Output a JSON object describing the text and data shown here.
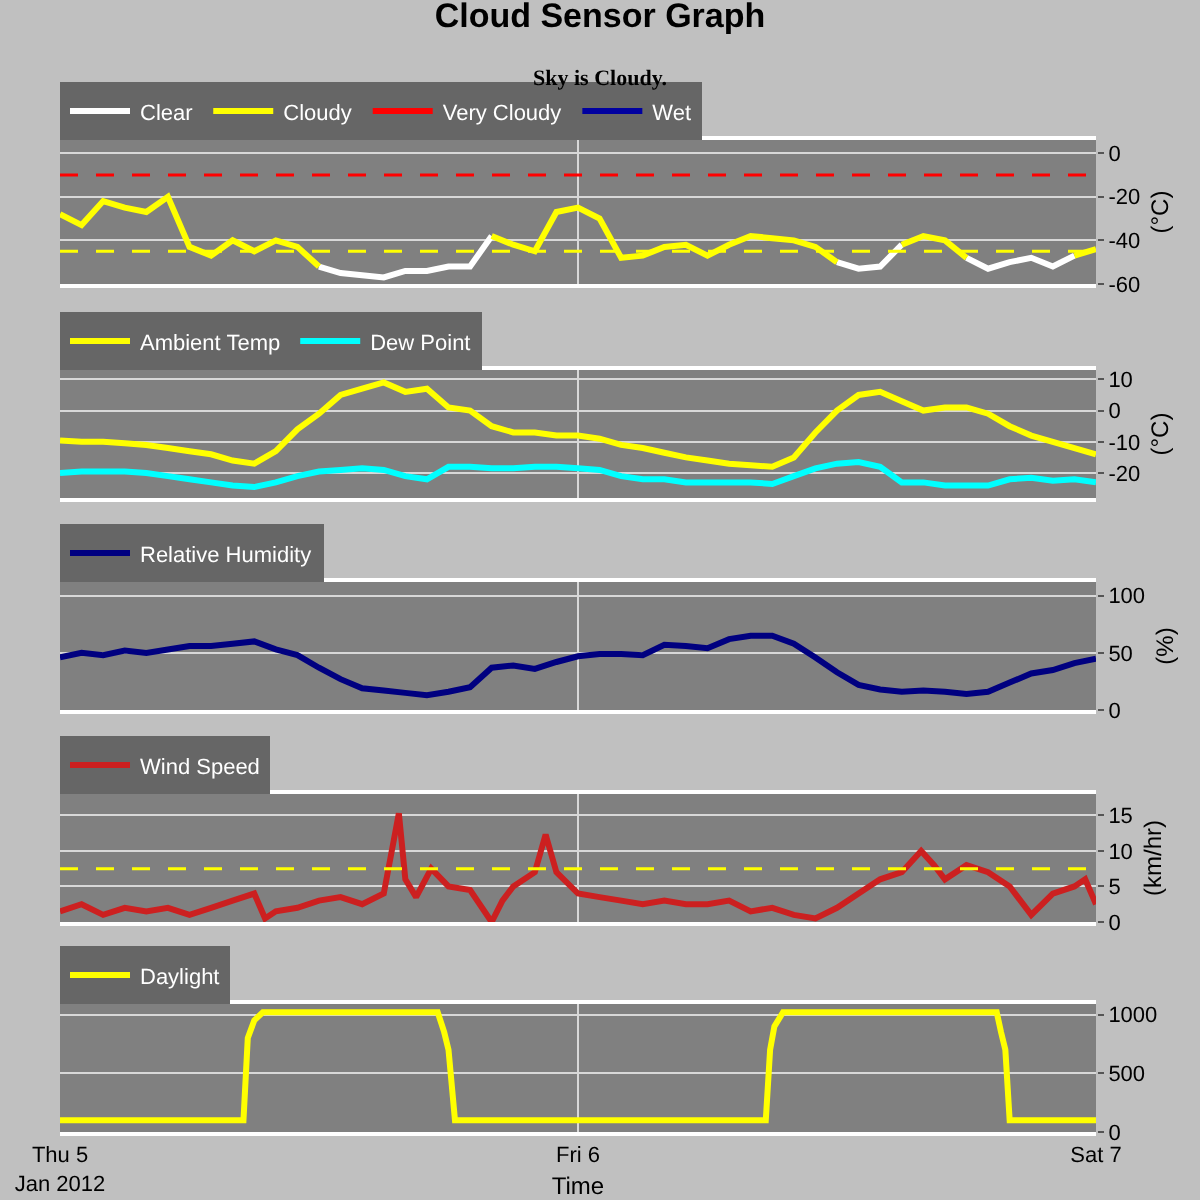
{
  "chart_data": [
    {
      "type": "line",
      "title": "Cloud Sensor Graph",
      "subtitle": "Sky is Cloudy.",
      "ylabel": "(°C)",
      "grid": true,
      "legend": "top left",
      "tick_labels": "y",
      "xlim": [
        "2012-01-05T00:00",
        "2012-01-07T00:00"
      ],
      "xticks": [
        {
          "value": "2012-01-05",
          "label": null
        },
        {
          "value": "2012-01-06",
          "label": null
        },
        {
          "value": "2012-01-07",
          "label": null
        }
      ],
      "ylim": [
        -60,
        6
      ],
      "yticks": [
        -60,
        -40,
        -20,
        0
      ],
      "x": [
        "2012-01-05T00:00",
        "2012-01-05T01:00",
        "2012-01-05T02:00",
        "2012-01-05T03:00",
        "2012-01-05T04:00",
        "2012-01-05T05:00",
        "2012-01-05T06:00",
        "2012-01-05T07:00",
        "2012-01-05T08:00",
        "2012-01-05T09:00",
        "2012-01-05T10:00",
        "2012-01-05T11:00",
        "2012-01-05T12:00",
        "2012-01-05T13:00",
        "2012-01-05T14:00",
        "2012-01-05T15:00",
        "2012-01-05T16:00",
        "2012-01-05T17:00",
        "2012-01-05T18:00",
        "2012-01-05T19:00",
        "2012-01-05T20:00",
        "2012-01-05T21:00",
        "2012-01-05T22:00",
        "2012-01-05T23:00",
        "2012-01-06T00:00",
        "2012-01-06T01:00",
        "2012-01-06T02:00",
        "2012-01-06T03:00",
        "2012-01-06T04:00",
        "2012-01-06T05:00",
        "2012-01-06T06:00",
        "2012-01-06T07:00",
        "2012-01-06T08:00",
        "2012-01-06T09:00",
        "2012-01-06T10:00",
        "2012-01-06T11:00",
        "2012-01-06T12:00",
        "2012-01-06T13:00",
        "2012-01-06T14:00",
        "2012-01-06T15:00",
        "2012-01-06T16:00",
        "2012-01-06T17:00",
        "2012-01-06T18:00",
        "2012-01-06T19:00",
        "2012-01-06T20:00",
        "2012-01-06T21:00",
        "2012-01-06T22:00",
        "2012-01-06T23:00",
        "2012-01-07T00:00"
      ],
      "series": [
        {
          "name": "Clear",
          "color": "#ffffff",
          "values": [
            null,
            null,
            null,
            null,
            null,
            null,
            null,
            null,
            null,
            null,
            null,
            null,
            -52,
            -55,
            -56,
            -57,
            -54,
            -54,
            -52,
            -52,
            -38,
            null,
            null,
            null,
            null,
            null,
            null,
            null,
            null,
            null,
            null,
            null,
            null,
            null,
            null,
            null,
            -50,
            -53,
            -52,
            -42,
            null,
            null,
            -48,
            -53,
            -50,
            -48,
            -52,
            -47,
            null
          ]
        },
        {
          "name": "Cloudy",
          "color": "#ffff00",
          "values": [
            -28,
            -33,
            -22,
            -25,
            -27,
            -20,
            -43,
            -47,
            -40,
            -45,
            -40,
            -43,
            -52,
            null,
            null,
            null,
            null,
            null,
            null,
            null,
            -38,
            -42,
            -45,
            -27,
            -25,
            -30,
            -48,
            -47,
            -43,
            -42,
            -47,
            -42,
            -38,
            -39,
            -40,
            -43,
            -50,
            null,
            null,
            -42,
            -38,
            -40,
            -48,
            null,
            null,
            null,
            null,
            -47,
            -44
          ]
        },
        {
          "name": "Very Cloudy",
          "color": "#ff0000",
          "values": [
            null,
            null,
            null,
            null,
            null,
            null,
            null,
            null,
            null,
            null,
            null,
            null,
            null,
            null,
            null,
            null,
            null,
            null,
            null,
            null,
            null,
            null,
            null,
            null,
            null,
            null,
            null,
            null,
            null,
            null,
            null,
            null,
            null,
            null,
            null,
            null,
            null,
            null,
            null,
            null,
            null,
            null,
            null,
            null,
            null,
            null,
            null,
            null,
            null
          ]
        },
        {
          "name": "Wet",
          "color": "#0000a0",
          "values": [
            null,
            null,
            null,
            null,
            null,
            null,
            null,
            null,
            null,
            null,
            null,
            null,
            null,
            null,
            null,
            null,
            null,
            null,
            null,
            null,
            null,
            null,
            null,
            null,
            null,
            null,
            null,
            null,
            null,
            null,
            null,
            null,
            null,
            null,
            null,
            null,
            null,
            null,
            null,
            null,
            null,
            null,
            null,
            null,
            null,
            null,
            null,
            null,
            null
          ]
        }
      ],
      "ref_lines": [
        {
          "axis": "y",
          "value": -10,
          "color": "#ff0000",
          "line_style": "dashed"
        },
        {
          "axis": "y",
          "value": -45,
          "color": "#ffff00",
          "line_style": "dashed"
        }
      ]
    },
    {
      "type": "line",
      "ylabel": "(°C)",
      "grid": true,
      "legend": "top left",
      "tick_labels": "y",
      "xlim": [
        "2012-01-05T00:00",
        "2012-01-07T00:00"
      ],
      "xticks": [
        {
          "value": "2012-01-05",
          "label": null
        },
        {
          "value": "2012-01-06",
          "label": null
        },
        {
          "value": "2012-01-07",
          "label": null
        }
      ],
      "ylim": [
        -28,
        13
      ],
      "yticks": [
        -20,
        -10,
        0,
        10
      ],
      "x": [
        "2012-01-05T00:00",
        "2012-01-05T01:00",
        "2012-01-05T02:00",
        "2012-01-05T03:00",
        "2012-01-05T04:00",
        "2012-01-05T05:00",
        "2012-01-05T06:00",
        "2012-01-05T07:00",
        "2012-01-05T08:00",
        "2012-01-05T09:00",
        "2012-01-05T10:00",
        "2012-01-05T11:00",
        "2012-01-05T12:00",
        "2012-01-05T13:00",
        "2012-01-05T14:00",
        "2012-01-05T15:00",
        "2012-01-05T16:00",
        "2012-01-05T17:00",
        "2012-01-05T18:00",
        "2012-01-05T19:00",
        "2012-01-05T20:00",
        "2012-01-05T21:00",
        "2012-01-05T22:00",
        "2012-01-05T23:00",
        "2012-01-06T00:00",
        "2012-01-06T01:00",
        "2012-01-06T02:00",
        "2012-01-06T03:00",
        "2012-01-06T04:00",
        "2012-01-06T05:00",
        "2012-01-06T06:00",
        "2012-01-06T07:00",
        "2012-01-06T08:00",
        "2012-01-06T09:00",
        "2012-01-06T10:00",
        "2012-01-06T11:00",
        "2012-01-06T12:00",
        "2012-01-06T13:00",
        "2012-01-06T14:00",
        "2012-01-06T15:00",
        "2012-01-06T16:00",
        "2012-01-06T17:00",
        "2012-01-06T18:00",
        "2012-01-06T19:00",
        "2012-01-06T20:00",
        "2012-01-06T21:00",
        "2012-01-06T22:00",
        "2012-01-06T23:00",
        "2012-01-07T00:00"
      ],
      "series": [
        {
          "name": "Ambient Temp",
          "color": "#ffff00",
          "values": [
            -9.6,
            -10,
            -10,
            -10.5,
            -11,
            -12,
            -13,
            -14,
            -16,
            -17,
            -13,
            -6,
            -1,
            5,
            7,
            9,
            6,
            7,
            1,
            0,
            -5,
            -7,
            -7,
            -8,
            -8,
            -9,
            -11,
            -12,
            -13.5,
            -15,
            -16,
            -17,
            -17.5,
            -18,
            -15,
            -7,
            0,
            5,
            6,
            3,
            0,
            1,
            1,
            -1,
            -5,
            -8,
            -10,
            -12,
            -14
          ]
        },
        {
          "name": "Dew Point",
          "color": "#00ffff",
          "values": [
            -20,
            -19.5,
            -19.5,
            -19.5,
            -20,
            -21,
            -22,
            -23,
            -24,
            -24.5,
            -23,
            -21,
            -19.5,
            -19,
            -18.5,
            -19,
            -21,
            -22,
            -18,
            -18,
            -18.5,
            -18.5,
            -18,
            -18,
            -18.5,
            -19,
            -21,
            -22,
            -22,
            -23,
            -23,
            -23,
            -23,
            -23.5,
            -21,
            -18.5,
            -17,
            -16.5,
            -18,
            -23,
            -23,
            -24,
            -24,
            -24,
            -22,
            -21.5,
            -22.5,
            -22,
            -23
          ]
        }
      ]
    },
    {
      "type": "line",
      "ylabel": "(%)",
      "grid": true,
      "legend": "top left",
      "tick_labels": "y",
      "xlim": [
        "2012-01-05T00:00",
        "2012-01-07T00:00"
      ],
      "xticks": [
        {
          "value": "2012-01-05",
          "label": null
        },
        {
          "value": "2012-01-06",
          "label": null
        },
        {
          "value": "2012-01-07",
          "label": null
        }
      ],
      "ylim": [
        0,
        112
      ],
      "yticks": [
        0,
        50,
        100
      ],
      "x": [
        "2012-01-05T00:00",
        "2012-01-05T01:00",
        "2012-01-05T02:00",
        "2012-01-05T03:00",
        "2012-01-05T04:00",
        "2012-01-05T05:00",
        "2012-01-05T06:00",
        "2012-01-05T07:00",
        "2012-01-05T08:00",
        "2012-01-05T09:00",
        "2012-01-05T10:00",
        "2012-01-05T11:00",
        "2012-01-05T12:00",
        "2012-01-05T13:00",
        "2012-01-05T14:00",
        "2012-01-05T15:00",
        "2012-01-05T16:00",
        "2012-01-05T17:00",
        "2012-01-05T18:00",
        "2012-01-05T19:00",
        "2012-01-05T20:00",
        "2012-01-05T21:00",
        "2012-01-05T22:00",
        "2012-01-05T23:00",
        "2012-01-06T00:00",
        "2012-01-06T01:00",
        "2012-01-06T02:00",
        "2012-01-06T03:00",
        "2012-01-06T04:00",
        "2012-01-06T05:00",
        "2012-01-06T06:00",
        "2012-01-06T07:00",
        "2012-01-06T08:00",
        "2012-01-06T09:00",
        "2012-01-06T10:00",
        "2012-01-06T11:00",
        "2012-01-06T12:00",
        "2012-01-06T13:00",
        "2012-01-06T14:00",
        "2012-01-06T15:00",
        "2012-01-06T16:00",
        "2012-01-06T17:00",
        "2012-01-06T18:00",
        "2012-01-06T19:00",
        "2012-01-06T20:00",
        "2012-01-06T21:00",
        "2012-01-06T22:00",
        "2012-01-06T23:00",
        "2012-01-07T00:00"
      ],
      "series": [
        {
          "name": "Relative Humidity",
          "color": "#000080",
          "values": [
            46,
            50,
            48,
            52,
            50,
            53,
            56,
            56,
            58,
            60,
            53,
            48,
            37,
            27,
            19,
            17,
            15,
            13,
            16,
            20,
            37,
            39,
            36,
            42,
            47,
            49,
            49,
            48,
            57,
            56,
            54,
            62,
            65,
            65,
            58,
            46,
            33,
            22,
            18,
            16,
            17,
            16,
            14,
            16,
            24,
            32,
            35,
            41,
            45
          ]
        }
      ]
    },
    {
      "type": "line",
      "ylabel": "(km/hr)",
      "grid": true,
      "legend": "top left",
      "tick_labels": "y",
      "xlim": [
        "2012-01-05T00:00",
        "2012-01-07T00:00"
      ],
      "xticks": [
        {
          "value": "2012-01-05",
          "label": null
        },
        {
          "value": "2012-01-06",
          "label": null
        },
        {
          "value": "2012-01-07",
          "label": null
        }
      ],
      "ylim": [
        0,
        18
      ],
      "yticks": [
        0,
        5,
        10,
        15
      ],
      "x": [
        "2012-01-05T00:00",
        "2012-01-05T01:00",
        "2012-01-05T02:00",
        "2012-01-05T03:00",
        "2012-01-05T04:00",
        "2012-01-05T05:00",
        "2012-01-05T06:00",
        "2012-01-05T07:00",
        "2012-01-05T08:00",
        "2012-01-05T09:00",
        "2012-01-05T09:30",
        "2012-01-05T10:00",
        "2012-01-05T11:00",
        "2012-01-05T12:00",
        "2012-01-05T13:00",
        "2012-01-05T14:00",
        "2012-01-05T15:00",
        "2012-01-05T15:42",
        "2012-01-05T16:00",
        "2012-01-05T16:30",
        "2012-01-05T17:12",
        "2012-01-05T18:00",
        "2012-01-05T19:00",
        "2012-01-05T20:00",
        "2012-01-05T20:30",
        "2012-01-05T21:00",
        "2012-01-05T22:00",
        "2012-01-05T22:30",
        "2012-01-05T23:00",
        "2012-01-06T00:00",
        "2012-01-06T01:00",
        "2012-01-06T02:00",
        "2012-01-06T03:00",
        "2012-01-06T04:00",
        "2012-01-06T05:00",
        "2012-01-06T06:00",
        "2012-01-06T07:00",
        "2012-01-06T08:00",
        "2012-01-06T09:00",
        "2012-01-06T10:00",
        "2012-01-06T11:00",
        "2012-01-06T12:00",
        "2012-01-06T13:00",
        "2012-01-06T14:00",
        "2012-01-06T15:00",
        "2012-01-06T15:54",
        "2012-01-06T16:30",
        "2012-01-06T17:00",
        "2012-01-06T18:00",
        "2012-01-06T19:00",
        "2012-01-06T20:00",
        "2012-01-06T21:00",
        "2012-01-06T22:00",
        "2012-01-06T23:00",
        "2012-01-06T23:30",
        "2012-01-07T00:00"
      ],
      "series": [
        {
          "name": "Wind Speed",
          "color": "#cc2020",
          "values": [
            1.5,
            2.5,
            1,
            2,
            1.5,
            2,
            1,
            2,
            3,
            4,
            0.5,
            1.5,
            2,
            3,
            3.5,
            2.5,
            4,
            15.3,
            6,
            3.5,
            7.5,
            5,
            4.5,
            0,
            3,
            5,
            7,
            12.3,
            7,
            4,
            3.5,
            3,
            2.5,
            3,
            2.5,
            2.5,
            3,
            1.5,
            2,
            1,
            0.5,
            2,
            4,
            6,
            7,
            10,
            8,
            6,
            8,
            7,
            5,
            1,
            4,
            5,
            6,
            2.5
          ]
        }
      ],
      "ref_lines": [
        {
          "axis": "y",
          "value": 7.5,
          "color": "#ffff00",
          "line_style": "dashed"
        }
      ]
    },
    {
      "type": "line",
      "xlabel": "Time",
      "grid": true,
      "legend": "top left",
      "xlim": [
        "2012-01-05T00:00",
        "2012-01-07T00:00"
      ],
      "xticks": [
        {
          "value": "2012-01-05",
          "label": "Thu 5\nJan 2012"
        },
        {
          "value": "2012-01-06",
          "label": "Fri 6"
        },
        {
          "value": "2012-01-07",
          "label": "Sat 7"
        }
      ],
      "ylim": [
        0,
        1090
      ],
      "yticks": [
        0,
        500,
        1000
      ],
      "x": [
        "2012-01-05T00:00",
        "2012-01-05T08:30",
        "2012-01-05T08:42",
        "2012-01-05T09:00",
        "2012-01-05T09:24",
        "2012-01-05T17:30",
        "2012-01-05T17:48",
        "2012-01-05T18:00",
        "2012-01-05T18:18",
        "2012-01-06T08:42",
        "2012-01-06T08:54",
        "2012-01-06T09:06",
        "2012-01-06T09:30",
        "2012-01-06T19:24",
        "2012-01-06T19:36",
        "2012-01-06T19:48",
        "2012-01-06T20:00",
        "2012-01-07T00:00"
      ],
      "series": [
        {
          "name": "Daylight",
          "color": "#ffff00",
          "values": [
            100,
            100,
            800,
            950,
            1020,
            1020,
            850,
            700,
            100,
            100,
            700,
            900,
            1020,
            1020,
            850,
            700,
            100,
            100
          ]
        }
      ]
    }
  ]
}
